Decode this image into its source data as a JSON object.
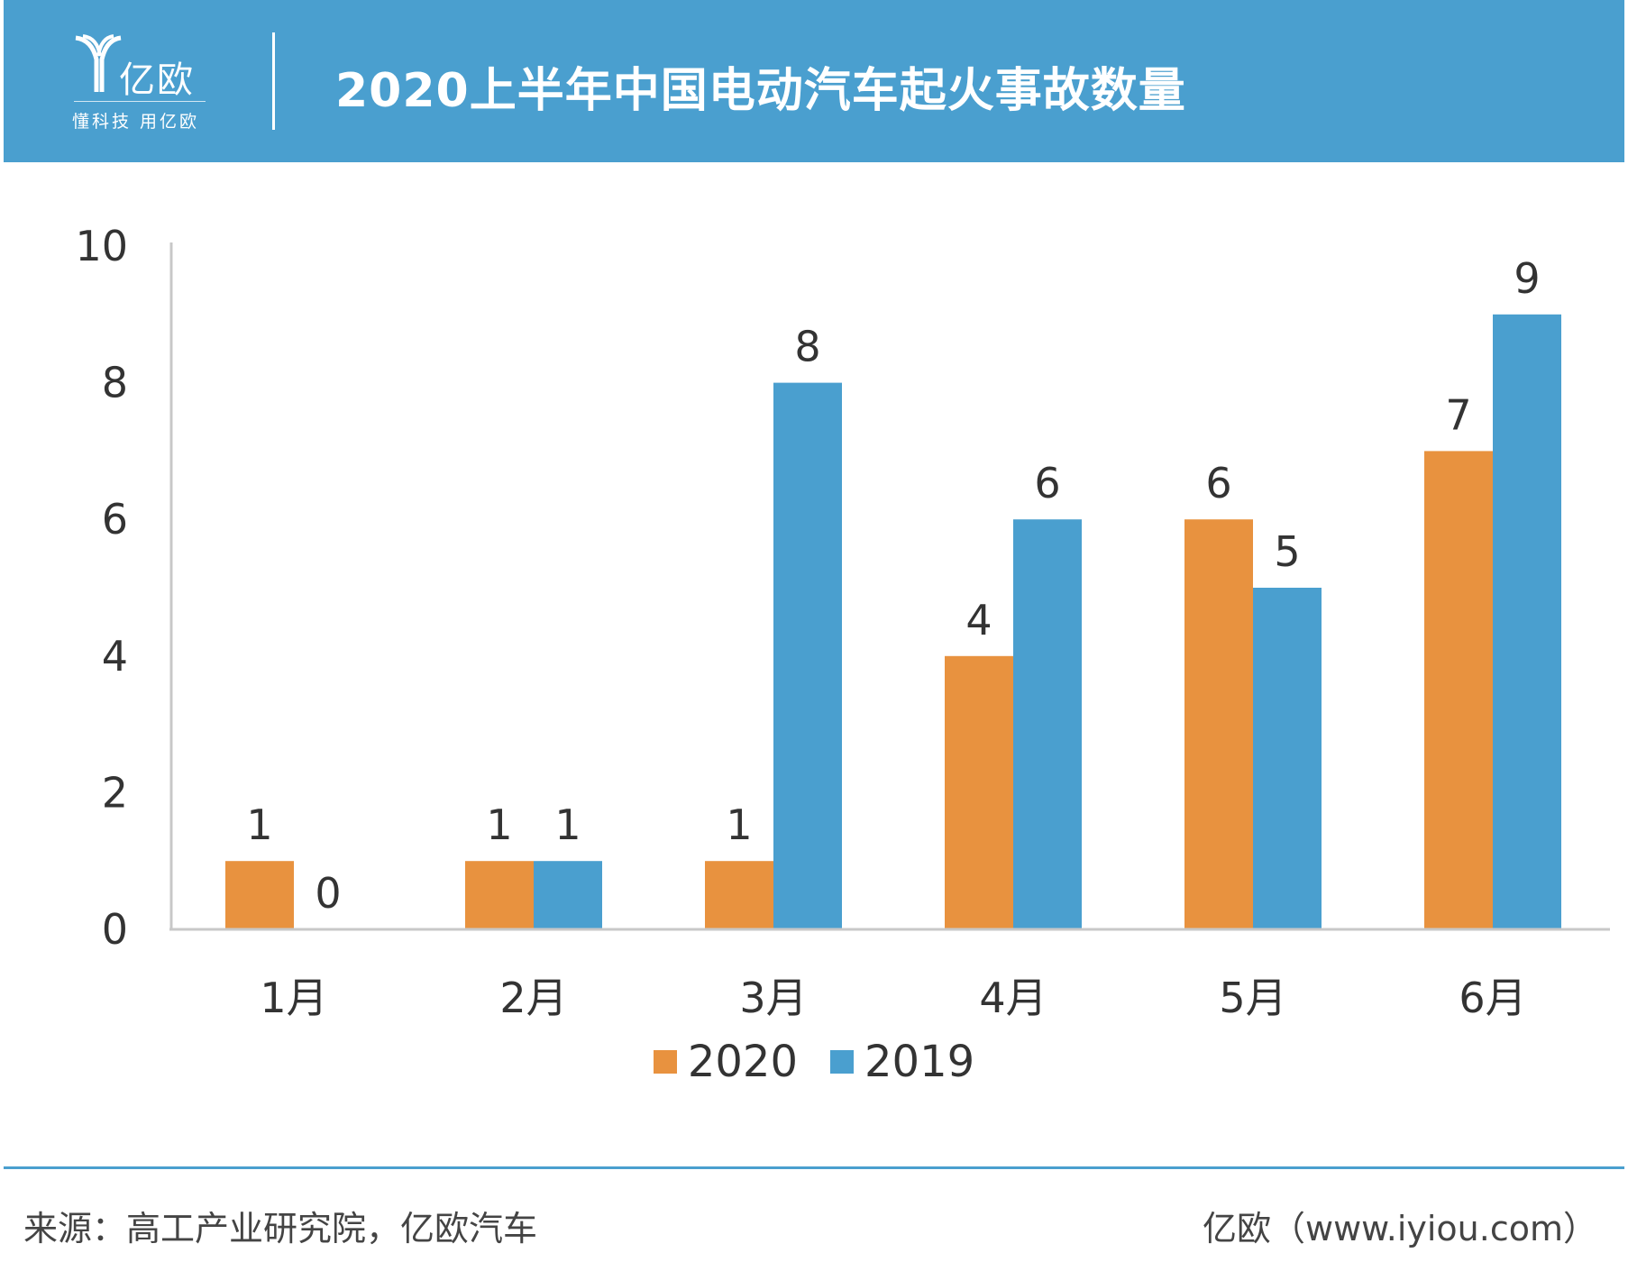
{
  "header": {
    "logo": {
      "name": "亿欧",
      "slogan": "懂科技 用亿欧"
    },
    "title": "2020上半年中国电动汽车起火事故数量"
  },
  "chart_data": {
    "type": "bar",
    "title": "2020上半年中国电动汽车起火事故数量",
    "categories": [
      "1月",
      "2月",
      "3月",
      "4月",
      "5月",
      "6月"
    ],
    "series": [
      {
        "name": "2020",
        "color": "#e8923f",
        "values": [
          1,
          1,
          1,
          4,
          6,
          7
        ]
      },
      {
        "name": "2019",
        "color": "#4a9fcf",
        "values": [
          0,
          1,
          8,
          6,
          5,
          9
        ]
      }
    ],
    "ylim": [
      0,
      10
    ],
    "yticks": [
      0,
      2,
      4,
      6,
      8,
      10
    ],
    "xlabel": "",
    "ylabel": "",
    "grid": false,
    "legend": "bottom-center",
    "data_labels": true
  },
  "footer": {
    "source": "来源：高工产业研究院，亿欧汽车",
    "site": "亿欧（www.iyiou.com）"
  }
}
